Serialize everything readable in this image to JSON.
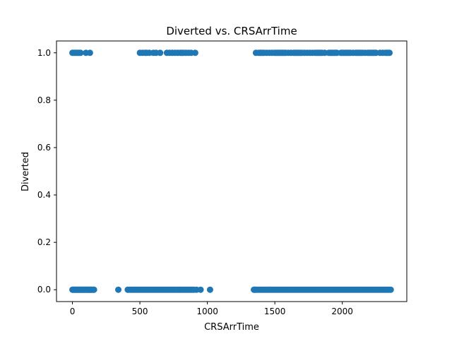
{
  "chart_data": {
    "type": "scatter",
    "title": "Diverted vs. CRSArrTime",
    "xlabel": "CRSArrTime",
    "ylabel": "Diverted",
    "xlim": [
      -118,
      2478
    ],
    "ylim": [
      -0.05,
      1.05
    ],
    "xticks": [
      0,
      500,
      1000,
      1500,
      2000
    ],
    "yticks": [
      0.0,
      0.2,
      0.4,
      0.6,
      0.8,
      1.0
    ],
    "xtick_labels": [
      "0",
      "500",
      "1000",
      "1500",
      "2000"
    ],
    "ytick_labels": [
      "0.0",
      "0.2",
      "0.4",
      "0.6",
      "0.8",
      "1.0"
    ],
    "grid": false,
    "marker_color": "#1f77b4",
    "series": [
      {
        "x": [
          0,
          5,
          10,
          15,
          20,
          25,
          30,
          35,
          40,
          45,
          50,
          55,
          60,
          65,
          70,
          75,
          80,
          85,
          90,
          95,
          100,
          105,
          110,
          115,
          120,
          125,
          130,
          135,
          140,
          145,
          150,
          155,
          160,
          340,
          410,
          420,
          430,
          440,
          450,
          460,
          470,
          480,
          490,
          500,
          510,
          520,
          530,
          540,
          550,
          560,
          570,
          580,
          590,
          600,
          610,
          620,
          630,
          640,
          650,
          660,
          670,
          680,
          690,
          700,
          710,
          720,
          730,
          740,
          750,
          760,
          770,
          780,
          790,
          800,
          810,
          820,
          830,
          840,
          850,
          860,
          870,
          880,
          890,
          900,
          920,
          950,
          1020,
          1345,
          1350,
          1355,
          1360,
          1370,
          1380,
          1390,
          1400,
          1410,
          1420,
          1430,
          1440,
          1450,
          1460,
          1470,
          1480,
          1490,
          1500,
          1510,
          1520,
          1530,
          1540,
          1550,
          1560,
          1570,
          1580,
          1590,
          1600,
          1610,
          1620,
          1630,
          1640,
          1650,
          1660,
          1670,
          1680,
          1690,
          1700,
          1710,
          1720,
          1730,
          1740,
          1750,
          1760,
          1770,
          1780,
          1790,
          1800,
          1810,
          1820,
          1830,
          1840,
          1850,
          1860,
          1870,
          1880,
          1890,
          1900,
          1910,
          1920,
          1930,
          1940,
          1950,
          1960,
          1970,
          1980,
          1990,
          2000,
          2010,
          2020,
          2030,
          2040,
          2050,
          2060,
          2070,
          2080,
          2090,
          2100,
          2110,
          2120,
          2130,
          2140,
          2150,
          2160,
          2170,
          2180,
          2190,
          2200,
          2210,
          2220,
          2230,
          2240,
          2250,
          2260,
          2270,
          2280,
          2290,
          2300,
          2310,
          2320,
          2330,
          2340,
          2350,
          2359,
          0,
          10,
          20,
          30,
          40,
          50,
          60,
          100,
          130,
          500,
          520,
          540,
          550,
          570,
          600,
          620,
          650,
          700,
          720,
          740,
          760,
          780,
          800,
          810,
          820,
          840,
          860,
          880,
          910,
          1360,
          1380,
          1390,
          1400,
          1410,
          1420,
          1440,
          1460,
          1480,
          1500,
          1510,
          1520,
          1530,
          1540,
          1550,
          1560,
          1570,
          1580,
          1600,
          1620,
          1640,
          1650,
          1660,
          1670,
          1680,
          1690,
          1700,
          1720,
          1740,
          1760,
          1780,
          1800,
          1810,
          1820,
          1830,
          1840,
          1850,
          1870,
          1900,
          1910,
          1920,
          1930,
          1940,
          1950,
          1960,
          1990,
          2000,
          2010,
          2020,
          2030,
          2040,
          2050,
          2060,
          2080,
          2100,
          2110,
          2120,
          2130,
          2140,
          2150,
          2170,
          2190,
          2200,
          2210,
          2220,
          2230,
          2240,
          2250,
          2280,
          2300,
          2320,
          2330,
          2340,
          2350
        ],
        "y": [
          0,
          0,
          0,
          0,
          0,
          0,
          0,
          0,
          0,
          0,
          0,
          0,
          0,
          0,
          0,
          0,
          0,
          0,
          0,
          0,
          0,
          0,
          0,
          0,
          0,
          0,
          0,
          0,
          0,
          0,
          0,
          0,
          0,
          0,
          0,
          0,
          0,
          0,
          0,
          0,
          0,
          0,
          0,
          0,
          0,
          0,
          0,
          0,
          0,
          0,
          0,
          0,
          0,
          0,
          0,
          0,
          0,
          0,
          0,
          0,
          0,
          0,
          0,
          0,
          0,
          0,
          0,
          0,
          0,
          0,
          0,
          0,
          0,
          0,
          0,
          0,
          0,
          0,
          0,
          0,
          0,
          0,
          0,
          0,
          0,
          0,
          0,
          0,
          0,
          0,
          0,
          0,
          0,
          0,
          0,
          0,
          0,
          0,
          0,
          0,
          0,
          0,
          0,
          0,
          0,
          0,
          0,
          0,
          0,
          0,
          0,
          0,
          0,
          0,
          0,
          0,
          0,
          0,
          0,
          0,
          0,
          0,
          0,
          0,
          0,
          0,
          0,
          0,
          0,
          0,
          0,
          0,
          0,
          0,
          0,
          0,
          0,
          0,
          0,
          0,
          0,
          0,
          0,
          0,
          0,
          0,
          0,
          0,
          0,
          0,
          0,
          0,
          0,
          0,
          0,
          0,
          0,
          0,
          0,
          0,
          0,
          0,
          0,
          0,
          0,
          0,
          0,
          0,
          0,
          0,
          0,
          0,
          0,
          0,
          0,
          0,
          0,
          0,
          0,
          0,
          0,
          0,
          0,
          0,
          0,
          0,
          0,
          0,
          0,
          0,
          0,
          1,
          1,
          1,
          1,
          1,
          1,
          1,
          1,
          1,
          1,
          1,
          1,
          1,
          1,
          1,
          1,
          1,
          1,
          1,
          1,
          1,
          1,
          1,
          1,
          1,
          1,
          1,
          1,
          1,
          1,
          1,
          1,
          1,
          1,
          1,
          1,
          1,
          1,
          1,
          1,
          1,
          1,
          1,
          1,
          1,
          1,
          1,
          1,
          1,
          1,
          1,
          1,
          1,
          1,
          1,
          1,
          1,
          1,
          1,
          1,
          1,
          1,
          1,
          1,
          1,
          1,
          1,
          1,
          1,
          1,
          1,
          1,
          1,
          1,
          1,
          1,
          1,
          1,
          1,
          1,
          1,
          1,
          1,
          1,
          1,
          1,
          1,
          1,
          1,
          1,
          1,
          1,
          1,
          1,
          1,
          1,
          1,
          1,
          1,
          1,
          1,
          1,
          1
        ]
      }
    ]
  }
}
